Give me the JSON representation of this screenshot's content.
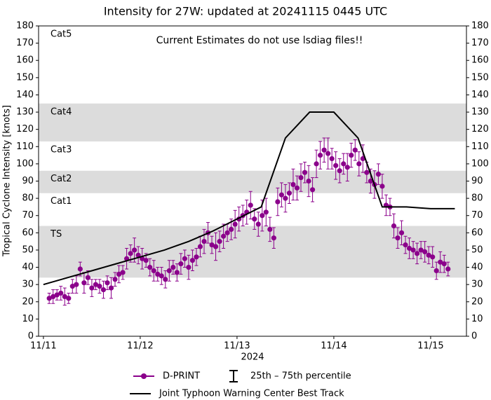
{
  "chart_data": {
    "type": "scatter",
    "title": "Intensity for 27W: updated at 20241115 0445 UTC",
    "annotation": "Current Estimates do not use lsdiag files!!",
    "xlabel": "2024",
    "ylabel": "Tropical Cyclone Intensity [knots]",
    "xlim": [
      10.95,
      15.37
    ],
    "xticks": [
      {
        "value": 11,
        "label": "11/11"
      },
      {
        "value": 12,
        "label": "11/12"
      },
      {
        "value": 13,
        "label": "11/13"
      },
      {
        "value": 14,
        "label": "11/14"
      },
      {
        "value": 15,
        "label": "11/15"
      }
    ],
    "ylim": [
      0,
      180
    ],
    "yticks": [
      0,
      10,
      20,
      30,
      40,
      50,
      60,
      70,
      80,
      90,
      100,
      110,
      120,
      130,
      140,
      150,
      160,
      170,
      180
    ],
    "intensity_bands": [
      {
        "label": "TS",
        "lower": 34,
        "upper": 64,
        "shaded": true
      },
      {
        "label": "Cat1",
        "lower": 64,
        "upper": 83,
        "shaded": false
      },
      {
        "label": "Cat2",
        "lower": 83,
        "upper": 96,
        "shaded": true
      },
      {
        "label": "Cat3",
        "lower": 96,
        "upper": 113,
        "shaded": false
      },
      {
        "label": "Cat4",
        "lower": 113,
        "upper": 135,
        "shaded": true
      },
      {
        "label": "Cat5",
        "lower": 135,
        "shaded": false
      }
    ],
    "error_name": "25th – 75th percentile",
    "series": [
      {
        "name": "D-PRINT",
        "color": "#8b008b",
        "type": "scatter",
        "x": [
          11.06,
          11.1,
          11.14,
          11.18,
          11.22,
          11.26,
          11.3,
          11.34,
          11.38,
          11.42,
          11.46,
          11.5,
          11.54,
          11.58,
          11.62,
          11.66,
          11.7,
          11.74,
          11.78,
          11.82,
          11.86,
          11.9,
          11.94,
          11.98,
          12.02,
          12.06,
          12.1,
          12.14,
          12.18,
          12.22,
          12.26,
          12.3,
          12.34,
          12.38,
          12.42,
          12.46,
          12.5,
          12.54,
          12.58,
          12.62,
          12.66,
          12.7,
          12.74,
          12.78,
          12.82,
          12.86,
          12.9,
          12.94,
          12.98,
          13.02,
          13.06,
          13.1,
          13.14,
          13.18,
          13.22,
          13.26,
          13.3,
          13.34,
          13.38,
          13.42,
          13.46,
          13.5,
          13.54,
          13.58,
          13.62,
          13.66,
          13.7,
          13.74,
          13.78,
          13.82,
          13.86,
          13.9,
          13.94,
          13.98,
          14.02,
          14.06,
          14.1,
          14.14,
          14.18,
          14.22,
          14.26,
          14.3,
          14.34,
          14.38,
          14.42,
          14.46,
          14.5,
          14.54,
          14.58,
          14.62,
          14.66,
          14.7,
          14.74,
          14.78,
          14.82,
          14.86,
          14.9,
          14.94,
          14.98,
          15.02,
          15.06,
          15.1,
          15.14,
          15.18
        ],
        "values": [
          22,
          23,
          24,
          25,
          23,
          22,
          29,
          30,
          39,
          31,
          34,
          28,
          30,
          29,
          27,
          31,
          28,
          33,
          36,
          37,
          45,
          48,
          50,
          47,
          45,
          44,
          40,
          38,
          36,
          35,
          33,
          38,
          40,
          37,
          42,
          45,
          40,
          44,
          46,
          52,
          55,
          60,
          53,
          52,
          55,
          58,
          60,
          62,
          65,
          68,
          70,
          72,
          76,
          68,
          65,
          70,
          72,
          62,
          57,
          78,
          82,
          80,
          83,
          88,
          86,
          92,
          95,
          90,
          85,
          100,
          105,
          108,
          106,
          103,
          99,
          96,
          100,
          98,
          105,
          108,
          100,
          103,
          95,
          90,
          88,
          94,
          87,
          76,
          75,
          64,
          57,
          60,
          53,
          51,
          50,
          48,
          50,
          49,
          47,
          46,
          38,
          43,
          42,
          39
        ],
        "errors": [
          3,
          4,
          3,
          4,
          5,
          3,
          4,
          5,
          4,
          6,
          4,
          5,
          3,
          4,
          5,
          4,
          6,
          4,
          5,
          4,
          6,
          5,
          7,
          5,
          6,
          4,
          5,
          6,
          4,
          5,
          5,
          6,
          4,
          5,
          6,
          5,
          7,
          6,
          5,
          6,
          7,
          6,
          5,
          8,
          6,
          7,
          5,
          6,
          8,
          7,
          6,
          7,
          8,
          6,
          7,
          9,
          8,
          7,
          6,
          8,
          7,
          8,
          6,
          9,
          7,
          8,
          6,
          9,
          7,
          8,
          8,
          7,
          9,
          6,
          8,
          7,
          6,
          8,
          7,
          6,
          7,
          8,
          6,
          7,
          8,
          6,
          7,
          6,
          5,
          7,
          6,
          7,
          5,
          6,
          5,
          6,
          5,
          6,
          5,
          6,
          5,
          6,
          5,
          4
        ]
      },
      {
        "name": "Joint Typhoon Warning Center Best Track",
        "color": "#000000",
        "type": "line",
        "x": [
          11.0,
          11.25,
          11.5,
          11.75,
          12.0,
          12.25,
          12.5,
          12.75,
          13.0,
          13.25,
          13.5,
          13.75,
          14.0,
          14.25,
          14.5,
          14.75,
          15.0,
          15.25
        ],
        "values": [
          30,
          34,
          38,
          42,
          46,
          50,
          55,
          61,
          68,
          75,
          115,
          130,
          130,
          115,
          75,
          75,
          74,
          74
        ]
      }
    ]
  }
}
